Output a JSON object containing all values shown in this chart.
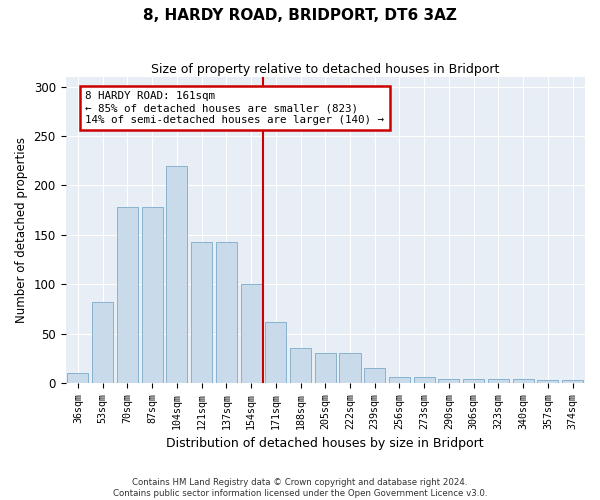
{
  "title": "8, HARDY ROAD, BRIDPORT, DT6 3AZ",
  "subtitle": "Size of property relative to detached houses in Bridport",
  "xlabel": "Distribution of detached houses by size in Bridport",
  "ylabel": "Number of detached properties",
  "categories": [
    "36sqm",
    "53sqm",
    "70sqm",
    "87sqm",
    "104sqm",
    "121sqm",
    "137sqm",
    "154sqm",
    "171sqm",
    "188sqm",
    "205sqm",
    "222sqm",
    "239sqm",
    "256sqm",
    "273sqm",
    "290sqm",
    "306sqm",
    "323sqm",
    "340sqm",
    "357sqm",
    "374sqm"
  ],
  "values": [
    10,
    82,
    178,
    178,
    220,
    143,
    143,
    100,
    62,
    35,
    30,
    30,
    15,
    6,
    6,
    4,
    4,
    4,
    4,
    3,
    3
  ],
  "bar_color": "#c9daea",
  "bar_edge_color": "#7aaac8",
  "vline_color": "#cc0000",
  "annotation_text": "8 HARDY ROAD: 161sqm\n← 85% of detached houses are smaller (823)\n14% of semi-detached houses are larger (140) →",
  "annotation_box_color": "#cc0000",
  "ylim": [
    0,
    310
  ],
  "yticks": [
    0,
    50,
    100,
    150,
    200,
    250,
    300
  ],
  "bg_color": "#e8eef5",
  "footer_line1": "Contains HM Land Registry data © Crown copyright and database right 2024.",
  "footer_line2": "Contains public sector information licensed under the Open Government Licence v3.0."
}
